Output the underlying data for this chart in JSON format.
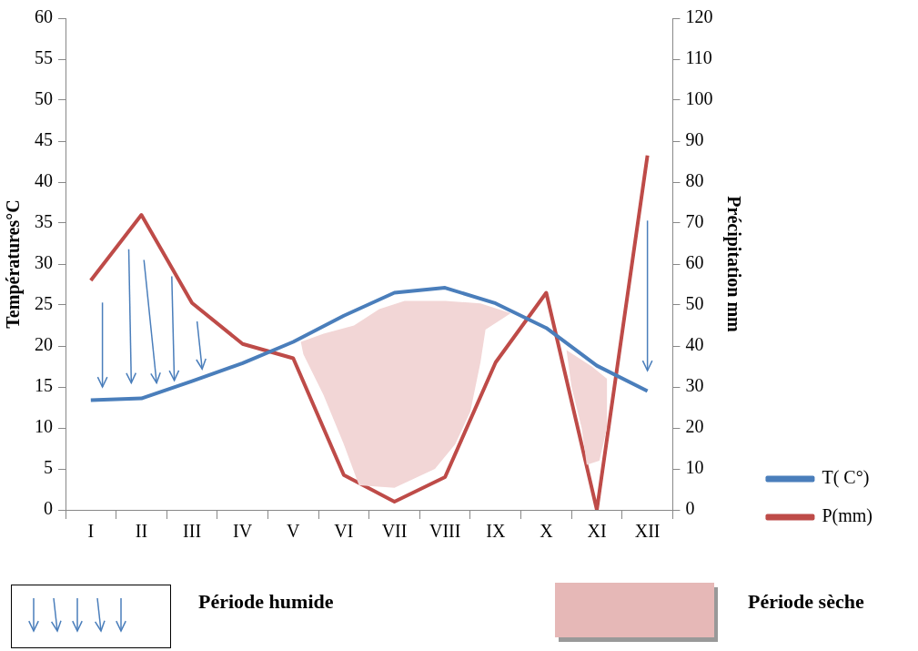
{
  "chart_data": {
    "type": "line",
    "ylabel": "Températures°C",
    "y2label": "Précipitation mm",
    "categories": [
      "I",
      "II",
      "III",
      "IV",
      "V",
      "VI",
      "VII",
      "VIII",
      "IX",
      "X",
      "XI",
      "XII"
    ],
    "series": [
      {
        "name": "T( C°)",
        "color": "#4a7ebb",
        "values": [
          13.4,
          13.6,
          15.7,
          17.9,
          20.5,
          23.7,
          26.5,
          27.1,
          25.2,
          22.2,
          17.6,
          14.5
        ]
      },
      {
        "name": "P(mm)",
        "color": "#be4b48",
        "axis": "y2",
        "values": [
          56,
          72,
          50.5,
          40.5,
          37,
          8.5,
          2,
          8,
          36,
          53,
          0,
          86.5
        ]
      }
    ],
    "ylim": [
      0,
      60
    ],
    "yticks": [
      0,
      5,
      10,
      15,
      20,
      25,
      30,
      35,
      40,
      45,
      50,
      55,
      60
    ],
    "y2lim": [
      0,
      120
    ],
    "y2ticks": [
      0,
      10,
      20,
      30,
      40,
      50,
      60,
      70,
      80,
      90,
      100,
      110,
      120
    ],
    "grid": false,
    "legend": "bottom right",
    "marker": "none",
    "line_style": "solid",
    "annotations": [
      "Période humide",
      "Période sèche"
    ]
  }
}
